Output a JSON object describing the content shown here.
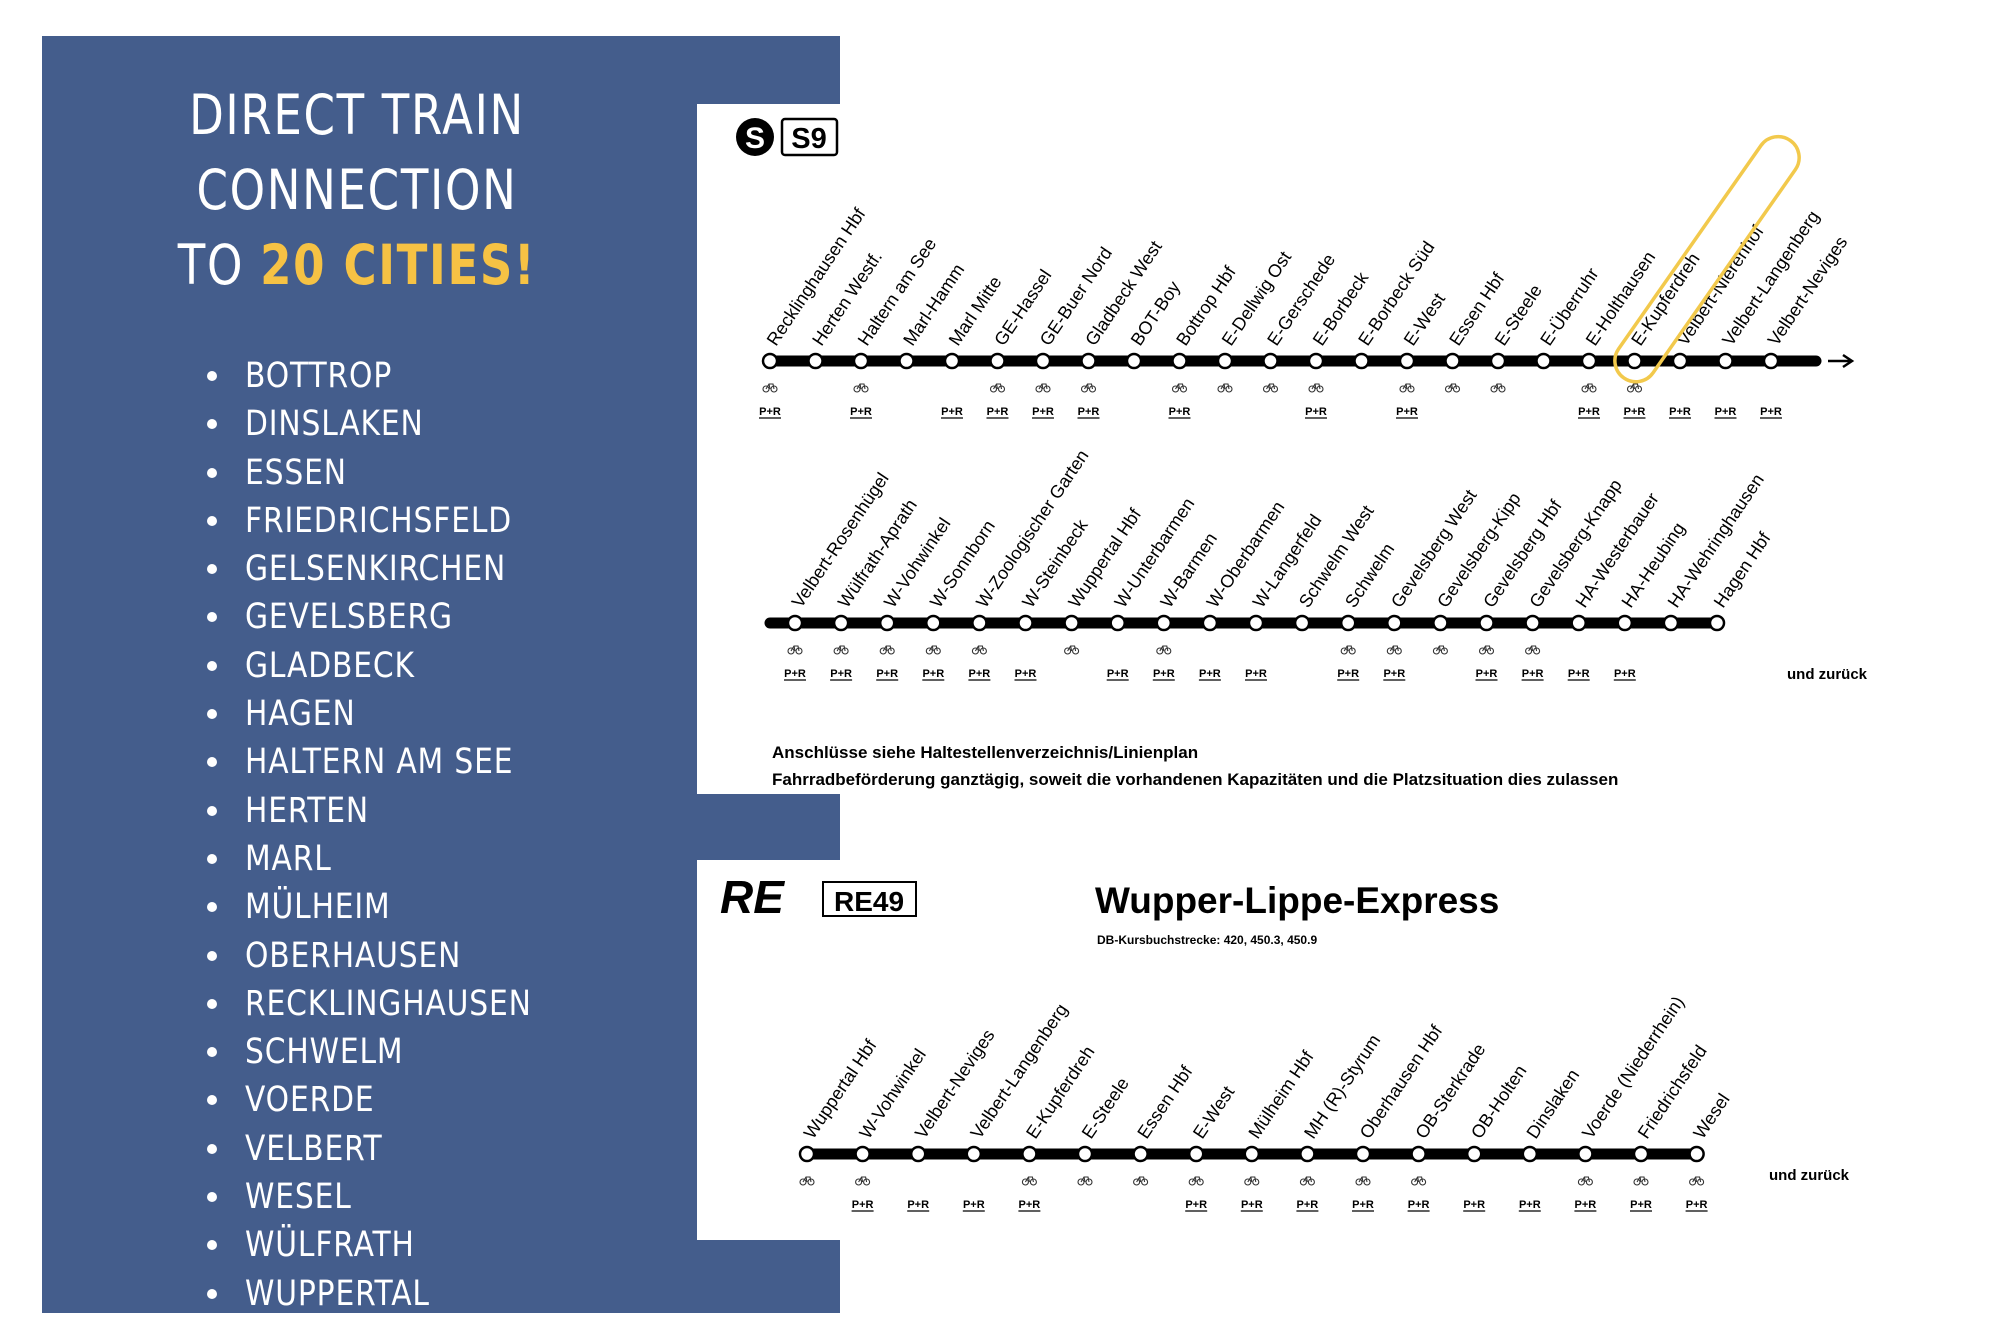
{
  "headline": {
    "line1": "DIRECT TRAIN",
    "line2": "CONNECTION",
    "line3_prefix": "TO ",
    "line3_highlight": "20 CITIES",
    "line3_suffix": "!"
  },
  "cities": [
    "BOTTROP",
    "DINSLAKEN",
    "ESSEN",
    "FRIEDRICHSFELD",
    "GELSENKIRCHEN",
    "GEVELSBERG",
    "GLADBECK",
    "HAGEN",
    "HALTERN AM SEE",
    "HERTEN",
    "MARL",
    "MÜLHEIM",
    "OBERHAUSEN",
    "RECKLINGHAUSEN",
    "SCHWELM",
    "VOERDE",
    "VELBERT",
    "WESEL",
    "WÜLFRATH",
    "WUPPERTAL"
  ],
  "colors": {
    "panel": "#445d8c",
    "highlight": "#f6c244",
    "ring": "#f2c94c",
    "line": "#000000"
  },
  "s9": {
    "s_symbol": "S",
    "line_badge": "S9",
    "row1": [
      {
        "name": "Recklinghausen Hbf",
        "bike": true,
        "pr": true
      },
      {
        "name": "Herten Westf.",
        "bike": false,
        "pr": false
      },
      {
        "name": "Haltern am See",
        "bike": true,
        "pr": true
      },
      {
        "name": "Marl-Hamm",
        "bike": false,
        "pr": false
      },
      {
        "name": "Marl Mitte",
        "bike": false,
        "pr": true
      },
      {
        "name": "GE-Hassel",
        "bike": true,
        "pr": true
      },
      {
        "name": "GE-Buer Nord",
        "bike": true,
        "pr": true
      },
      {
        "name": "Gladbeck West",
        "bike": true,
        "pr": true
      },
      {
        "name": "BOT-Boy",
        "bike": false,
        "pr": false
      },
      {
        "name": "Bottrop Hbf",
        "bike": true,
        "pr": true
      },
      {
        "name": "E-Dellwig Ost",
        "bike": true,
        "pr": false
      },
      {
        "name": "E-Gerschede",
        "bike": true,
        "pr": false
      },
      {
        "name": "E-Borbeck",
        "bike": true,
        "pr": true
      },
      {
        "name": "E-Borbeck Süd",
        "bike": false,
        "pr": false
      },
      {
        "name": "E-West",
        "bike": true,
        "pr": true
      },
      {
        "name": "Essen Hbf",
        "bike": true,
        "pr": false
      },
      {
        "name": "E-Steele",
        "bike": true,
        "pr": false
      },
      {
        "name": "E-Überruhr",
        "bike": false,
        "pr": false
      },
      {
        "name": "E-Holthausen",
        "bike": true,
        "pr": true
      },
      {
        "name": "E-Kupferdreh",
        "bike": true,
        "pr": true
      },
      {
        "name": "Velbert-Nierenhof",
        "bike": false,
        "pr": true
      },
      {
        "name": "Velbert-Langenberg",
        "bike": false,
        "pr": true
      },
      {
        "name": "Velbert-Neviges",
        "bike": false,
        "pr": true
      }
    ],
    "row2": [
      {
        "name": "Velbert-Rosenhügel",
        "bike": true,
        "pr": true
      },
      {
        "name": "Wülfrath-Aprath",
        "bike": true,
        "pr": true
      },
      {
        "name": "W-Vohwinkel",
        "bike": true,
        "pr": true
      },
      {
        "name": "W-Sonnborn",
        "bike": true,
        "pr": true
      },
      {
        "name": "W-Zoologischer Garten",
        "bike": true,
        "pr": true
      },
      {
        "name": "W-Steinbeck",
        "bike": false,
        "pr": true
      },
      {
        "name": "Wuppertal Hbf",
        "bike": true,
        "pr": false
      },
      {
        "name": "W-Unterbarmen",
        "bike": false,
        "pr": true
      },
      {
        "name": "W-Barmen",
        "bike": true,
        "pr": true
      },
      {
        "name": "W-Oberbarmen",
        "bike": false,
        "pr": true
      },
      {
        "name": "W-Langerfeld",
        "bike": false,
        "pr": true
      },
      {
        "name": "Schwelm West",
        "bike": false,
        "pr": false
      },
      {
        "name": "Schwelm",
        "bike": true,
        "pr": true
      },
      {
        "name": "Gevelsberg West",
        "bike": true,
        "pr": true
      },
      {
        "name": "Gevelsberg-Kipp",
        "bike": true,
        "pr": false
      },
      {
        "name": "Gevelsberg Hbf",
        "bike": true,
        "pr": true
      },
      {
        "name": "Gevelsberg-Knapp",
        "bike": true,
        "pr": true
      },
      {
        "name": "HA-Westerbauer",
        "bike": false,
        "pr": true
      },
      {
        "name": "HA-Heubing",
        "bike": false,
        "pr": true
      },
      {
        "name": "HA-Wehringhausen",
        "bike": false,
        "pr": false
      },
      {
        "name": "Hagen Hbf",
        "bike": false,
        "pr": false
      }
    ],
    "return_label": "und zurück",
    "note1": "Anschlüsse siehe Haltestellenverzeichnis/Linienplan",
    "note2": "Fahrradbeförderung ganztägig, soweit die vorhandenen Kapazitäten und die Platzsituation dies zulassen",
    "highlighted_station": "E-Kupferdreh"
  },
  "re49": {
    "re_symbol": "RE",
    "line_badge": "RE49",
    "title": "Wupper-Lippe-Express",
    "subtitle": "DB-Kursbuchstrecke: 420, 450.3, 450.9",
    "stations": [
      {
        "name": "Wuppertal Hbf",
        "bike": true,
        "pr": false
      },
      {
        "name": "W-Vohwinkel",
        "bike": true,
        "pr": true
      },
      {
        "name": "Velbert-Neviges",
        "bike": false,
        "pr": true
      },
      {
        "name": "Velbert-Langenberg",
        "bike": false,
        "pr": true
      },
      {
        "name": "E-Kupferdreh",
        "bike": true,
        "pr": true
      },
      {
        "name": "E-Steele",
        "bike": true,
        "pr": false
      },
      {
        "name": "Essen Hbf",
        "bike": true,
        "pr": false
      },
      {
        "name": "E-West",
        "bike": true,
        "pr": true
      },
      {
        "name": "Mülheim Hbf",
        "bike": true,
        "pr": true
      },
      {
        "name": "MH (R)-Styrum",
        "bike": true,
        "pr": true
      },
      {
        "name": "Oberhausen Hbf",
        "bike": true,
        "pr": true
      },
      {
        "name": "OB-Sterkrade",
        "bike": true,
        "pr": true
      },
      {
        "name": "OB-Holten",
        "bike": false,
        "pr": true
      },
      {
        "name": "Dinslaken",
        "bike": false,
        "pr": true
      },
      {
        "name": "Voerde (Niederrhein)",
        "bike": true,
        "pr": true
      },
      {
        "name": "Friedrichsfeld",
        "bike": true,
        "pr": true
      },
      {
        "name": "Wesel",
        "bike": true,
        "pr": true
      }
    ],
    "return_label": "und zurück"
  },
  "pr_label": "P+R"
}
